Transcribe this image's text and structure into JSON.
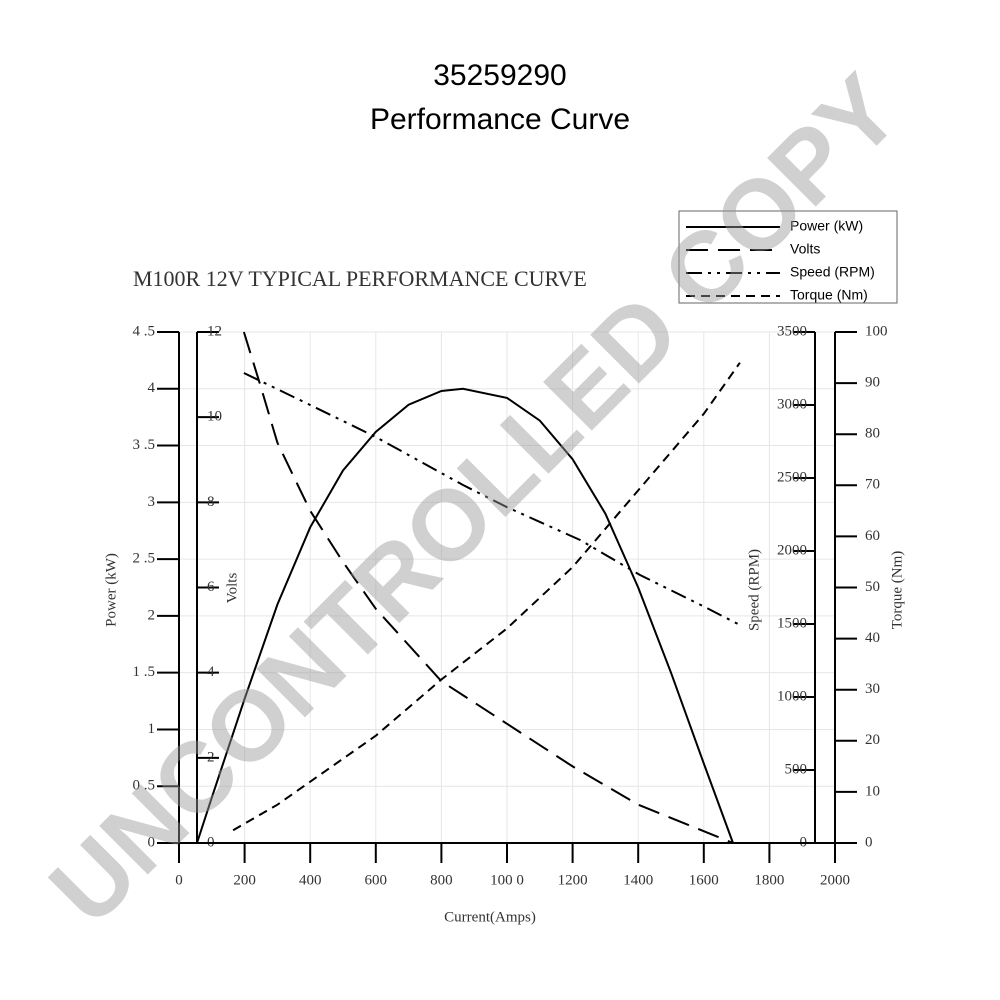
{
  "chart_data": {
    "type": "line",
    "title": "35259290",
    "subtitle": "Performance Curve",
    "annotation": "M100R 12V TYPICAL PERFORMANCE CURVE",
    "watermark": "UNCONTROLLED COPY",
    "x_label": "Current(Amps)",
    "y_label": "Power (kW)",
    "y2_label": "Volts",
    "y3_label": "Speed (RPM)",
    "y4_label": "Torque (Nm)",
    "grid": true,
    "legend": "upper right",
    "xlim": [
      0,
      2000
    ],
    "xticks": [
      0,
      200,
      400,
      600,
      800,
      {
        "value": 1000,
        "label": "100 0"
      },
      1200,
      1400,
      1600,
      1800,
      2000
    ],
    "ylim": [
      0,
      4.5
    ],
    "yticks": [
      0,
      {
        "value": 0.5,
        "label": "0 .5"
      },
      1,
      {
        "value": 1.5,
        "label": "1 .5"
      },
      2,
      {
        "value": 2.5,
        "label": "2 .5"
      },
      3,
      {
        "value": 3.5,
        "label": "3 .5"
      },
      4,
      {
        "value": 4.5,
        "label": "4 .5"
      }
    ],
    "y2lim": [
      0,
      12
    ],
    "y2ticks": [
      0,
      2,
      4,
      6,
      8,
      10,
      12
    ],
    "y3lim": [
      0,
      3500
    ],
    "y3ticks": [
      0,
      500,
      1000,
      1500,
      2000,
      2500,
      3000,
      3500
    ],
    "y4lim": [
      0,
      100
    ],
    "y4ticks": [
      0,
      10,
      20,
      30,
      40,
      50,
      60,
      70,
      80,
      90,
      100
    ],
    "series": [
      {
        "name": "Power (kW)",
        "color": "#000000",
        "dash": "solid",
        "axis": "y",
        "x": [
          55,
          100,
          200,
          300,
          400,
          500,
          600,
          700,
          800,
          866,
          1000,
          1100,
          1200,
          1300,
          1400,
          1500,
          1600,
          1689
        ],
        "values": [
          0,
          0.4,
          1.27,
          2.1,
          2.78,
          3.28,
          3.62,
          3.86,
          3.98,
          4.0,
          3.92,
          3.72,
          3.38,
          2.9,
          2.25,
          1.5,
          0.7,
          0
        ]
      },
      {
        "name": "Volts",
        "color": "#000000",
        "dash": "long",
        "axis": "y2",
        "x": [
          198,
          250,
          300,
          400,
          500,
          600,
          800,
          1000,
          1200,
          1400,
          1689
        ],
        "values": [
          12,
          10.7,
          9.4,
          7.8,
          6.6,
          5.5,
          3.8,
          2.8,
          1.8,
          0.9,
          0
        ]
      },
      {
        "name": "Speed (RPM)",
        "color": "#000000",
        "dash": "dashdot",
        "axis": "y3",
        "x": [
          198,
          400,
          600,
          866,
          1000,
          1223,
          1405,
          1600,
          1710
        ],
        "values": [
          3219,
          3000,
          2781,
          2452,
          2300,
          2075,
          1836,
          1620,
          1493
        ]
      },
      {
        "name": "Torque (Nm)",
        "color": "#000000",
        "dash": "short",
        "axis": "y4",
        "x": [
          165,
          300,
          400,
          600,
          800,
          1000,
          1200,
          1400,
          1600,
          1710
        ],
        "values": [
          2.5,
          7.5,
          12,
          21,
          32,
          42,
          54,
          69,
          84,
          94
        ]
      }
    ]
  }
}
